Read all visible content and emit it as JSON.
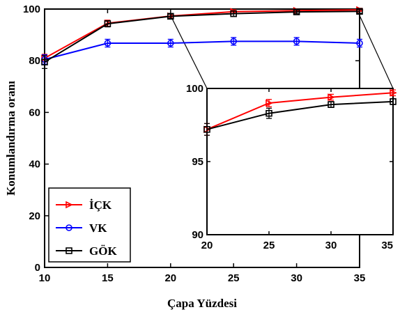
{
  "chart_data": [
    {
      "type": "line",
      "xlabel": "Çapa  Yüzdesi",
      "ylabel": "Konumlandırma oranı",
      "xlim": [
        10,
        35
      ],
      "ylim": [
        0,
        100
      ],
      "xticks": [
        "10",
        "15",
        "20",
        "25",
        "30",
        "35"
      ],
      "yticks": [
        "0",
        "20",
        "40",
        "60",
        "80",
        "100"
      ],
      "legend_position": "bottom-left",
      "x": [
        10,
        15,
        20,
        25,
        30,
        35
      ],
      "series": [
        {
          "name": "İÇK",
          "color": "#ff0000",
          "marker": "triangle-right",
          "values": [
            81,
            94.5,
            97.3,
            99.0,
            99.4,
            99.7
          ],
          "errors": [
            1.5,
            1.2,
            0.8,
            0.7,
            0.6,
            0.6
          ]
        },
        {
          "name": "VK",
          "color": "#0000ff",
          "marker": "circle",
          "values": [
            80.5,
            86.8,
            86.8,
            87.5,
            87.5,
            86.8
          ],
          "errors": [
            1.8,
            1.5,
            1.5,
            1.5,
            1.5,
            1.5
          ]
        },
        {
          "name": "GÖK",
          "color": "#000000",
          "marker": "square",
          "values": [
            79.5,
            94.3,
            97.2,
            98.2,
            98.9,
            99.1
          ],
          "errors": [
            2.5,
            1.2,
            0.8,
            1.0,
            0.7,
            0.7
          ]
        }
      ]
    },
    {
      "type": "line",
      "xlim": [
        20,
        35
      ],
      "ylim": [
        90,
        100
      ],
      "xticks": [
        "20",
        "25",
        "30",
        "35"
      ],
      "yticks": [
        "90",
        "95",
        "100"
      ],
      "x": [
        20,
        25,
        30,
        35
      ],
      "series": [
        {
          "name": "İÇK",
          "color": "#ff0000",
          "values": [
            97.2,
            99.0,
            99.4,
            99.7
          ],
          "errors": [
            0.4,
            0.25,
            0.2,
            0.2
          ]
        },
        {
          "name": "GÖK",
          "color": "#000000",
          "values": [
            97.2,
            98.3,
            98.9,
            99.1
          ],
          "errors": [
            0.4,
            0.35,
            0.2,
            0.2
          ]
        }
      ]
    }
  ]
}
